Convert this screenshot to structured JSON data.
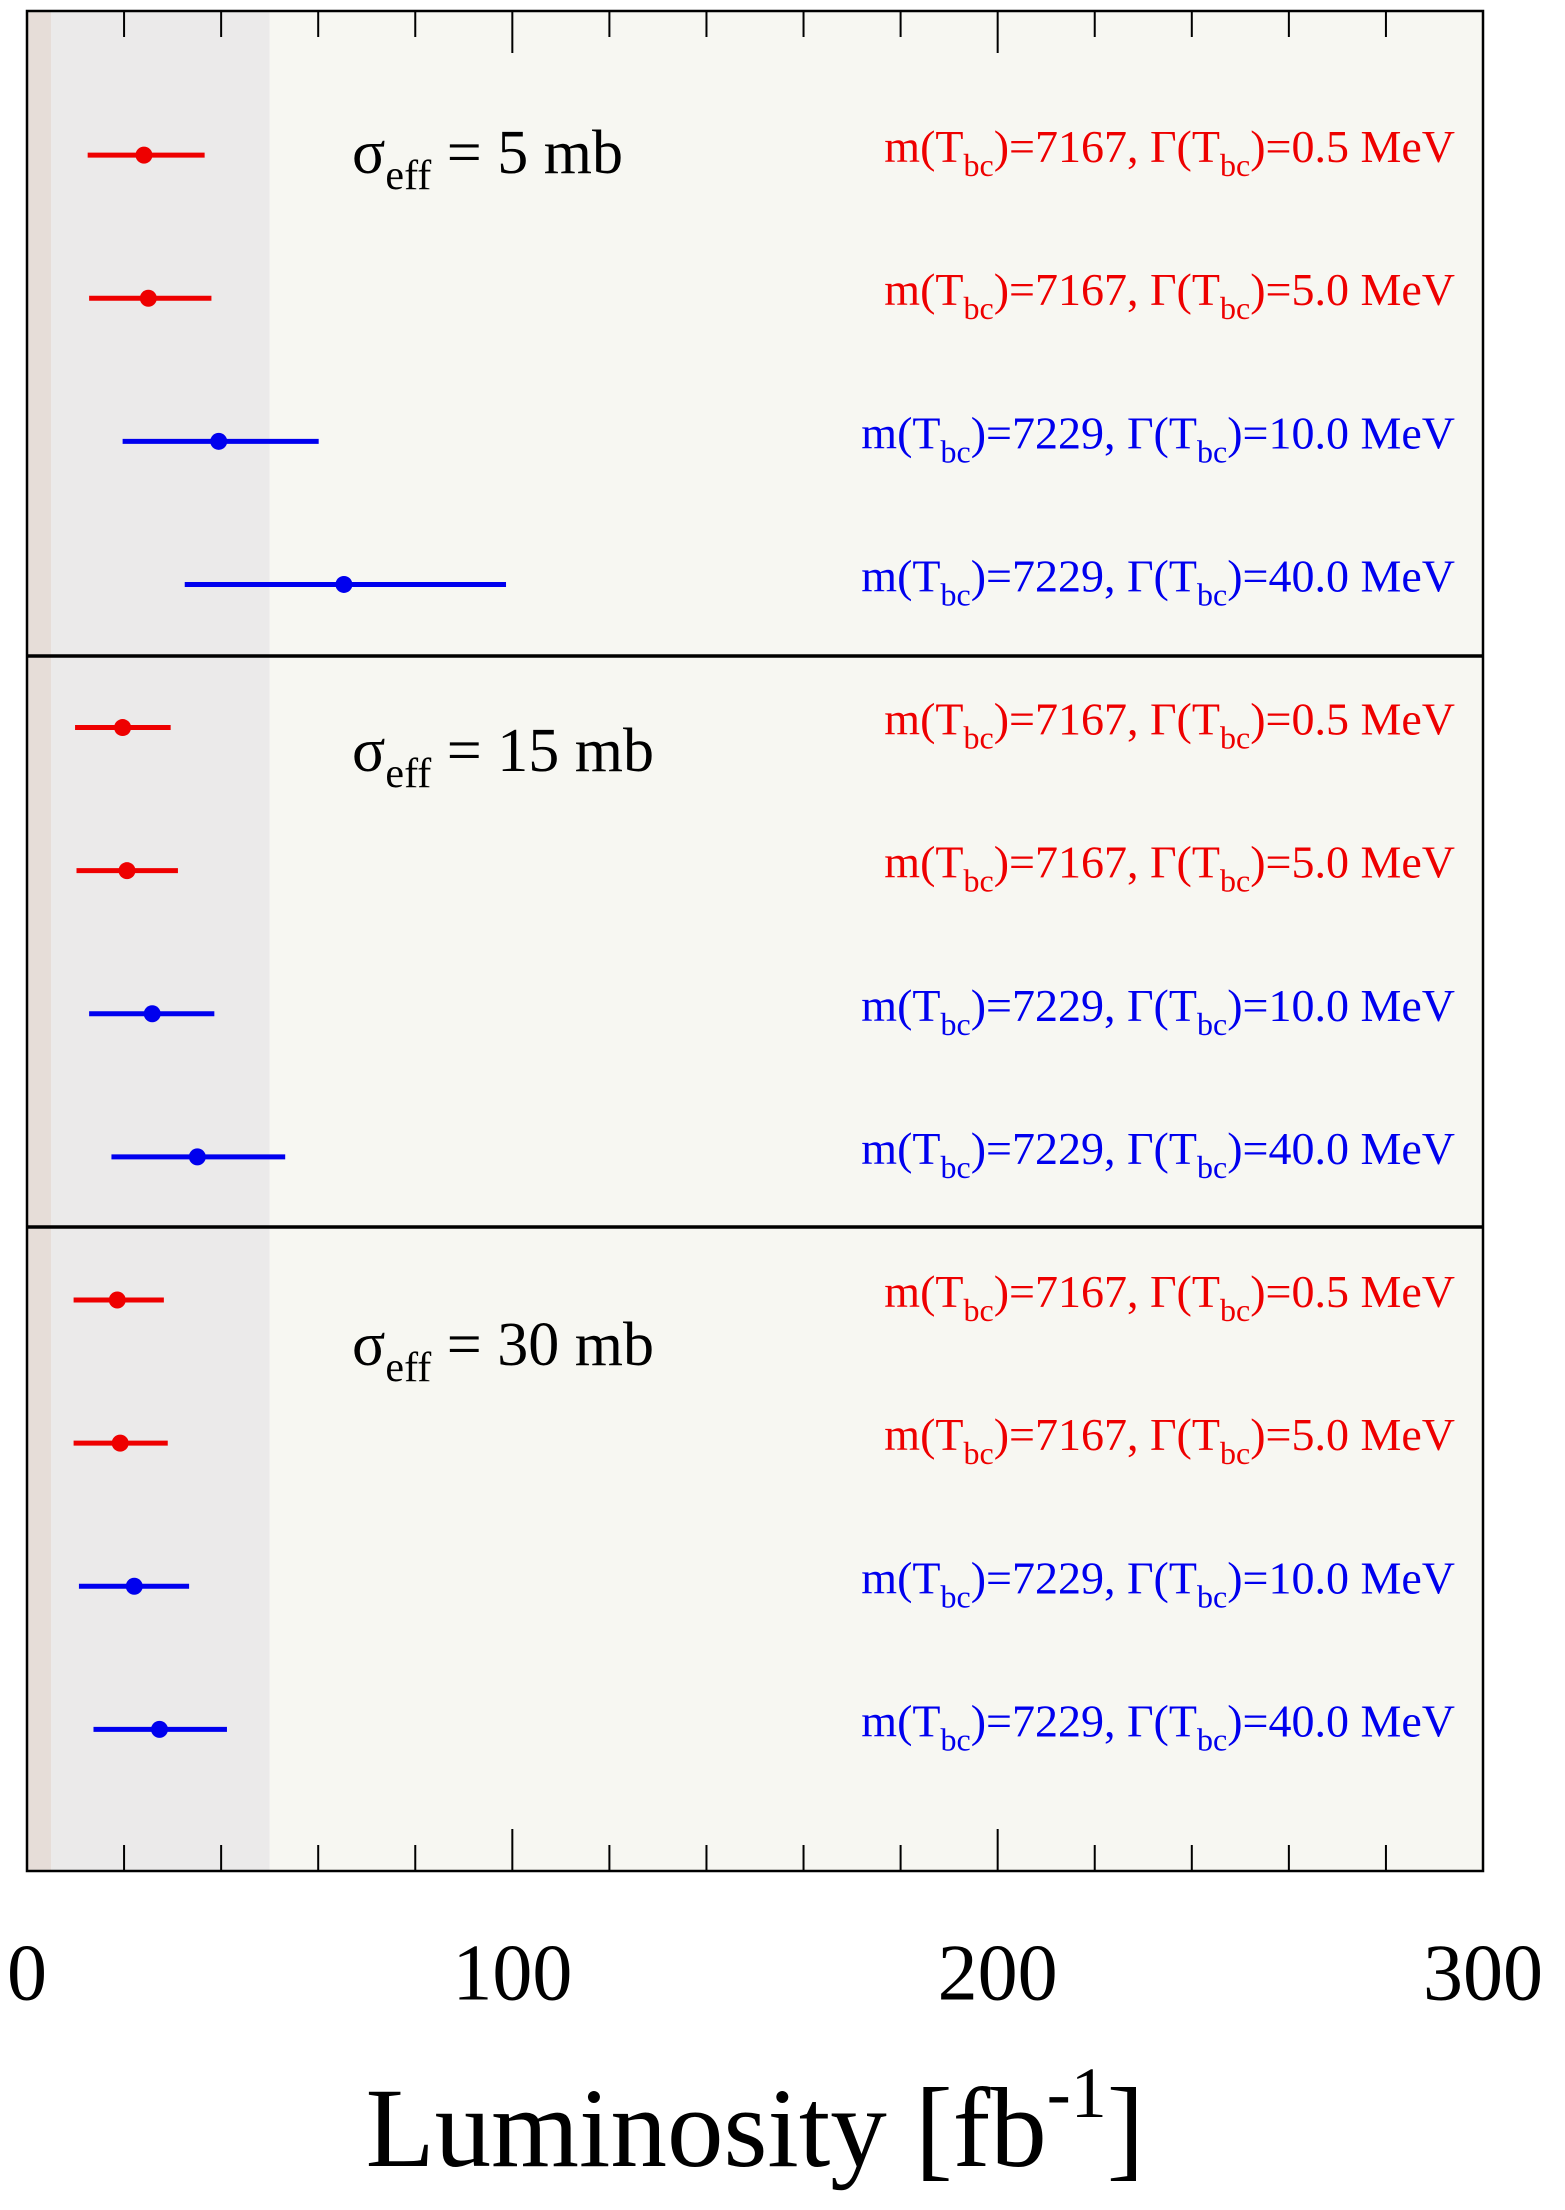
{
  "chart_data": {
    "type": "errorbar",
    "xlabel": [
      "Luminosity [fb",
      "-1",
      "]"
    ],
    "xlim": [
      0,
      300
    ],
    "xticks": [
      0,
      100,
      200,
      300
    ],
    "xminorticks": [
      20,
      40,
      60,
      80,
      120,
      140,
      160,
      180,
      220,
      240,
      260,
      280
    ],
    "bands": [
      {
        "from": 0,
        "to": 5,
        "color": "#e6ddd8"
      },
      {
        "from": 5,
        "to": 50,
        "color": "#ebeaea"
      },
      {
        "from": 50,
        "to": 300,
        "color": "#f7f7f2"
      }
    ],
    "panels": [
      {
        "title": [
          "σ",
          "eff",
          " = 5 mb"
        ],
        "rows": [
          {
            "label": [
              "m(T",
              "bc",
              ")=7167, Γ(T",
              "bc",
              ")=0.5 MeV"
            ],
            "color": "#ee0000",
            "value": 24.1,
            "lower": 12.5,
            "upper": 36.6
          },
          {
            "label": [
              "m(T",
              "bc",
              ")=7167, Γ(T",
              "bc",
              ")=5.0 MeV"
            ],
            "color": "#ee0000",
            "value": 25,
            "lower": 12.8,
            "upper": 38
          },
          {
            "label": [
              "m(T",
              "bc",
              ")=7229, Γ(T",
              "bc",
              ")=10.0 MeV"
            ],
            "color": "#0000ee",
            "value": 39.5,
            "lower": 19.7,
            "upper": 60.1
          },
          {
            "label": [
              "m(T",
              "bc",
              ")=7229, Γ(T",
              "bc",
              ")=40.0 MeV"
            ],
            "color": "#0000ee",
            "value": 65.3,
            "lower": 32.5,
            "upper": 98.7
          }
        ]
      },
      {
        "title": [
          "σ",
          "eff",
          " = 15 mb"
        ],
        "rows": [
          {
            "label": [
              "m(T",
              "bc",
              ")=7167, Γ(T",
              "bc",
              ")=0.5 MeV"
            ],
            "color": "#ee0000",
            "value": 19.7,
            "lower": 9.9,
            "upper": 29.6
          },
          {
            "label": [
              "m(T",
              "bc",
              ")=7167, Γ(T",
              "bc",
              ")=5.0 MeV"
            ],
            "color": "#ee0000",
            "value": 20.6,
            "lower": 10.2,
            "upper": 31.1
          },
          {
            "label": [
              "m(T",
              "bc",
              ")=7229, Γ(T",
              "bc",
              ")=10.0 MeV"
            ],
            "color": "#0000ee",
            "value": 25.8,
            "lower": 12.8,
            "upper": 38.6
          },
          {
            "label": [
              "m(T",
              "bc",
              ")=7229, Γ(T",
              "bc",
              ")=40.0 MeV"
            ],
            "color": "#0000ee",
            "value": 35.1,
            "lower": 17.4,
            "upper": 53.2
          }
        ]
      },
      {
        "title": [
          "σ",
          "eff",
          " = 30 mb"
        ],
        "rows": [
          {
            "label": [
              "m(T",
              "bc",
              ")=7167, Γ(T",
              "bc",
              ")=0.5 MeV"
            ],
            "color": "#ee0000",
            "value": 18.6,
            "lower": 9.6,
            "upper": 28.2
          },
          {
            "label": [
              "m(T",
              "bc",
              ")=7167, Γ(T",
              "bc",
              ")=5.0 MeV"
            ],
            "color": "#ee0000",
            "value": 19.2,
            "lower": 9.6,
            "upper": 29.0
          },
          {
            "label": [
              "m(T",
              "bc",
              ")=7229, Γ(T",
              "bc",
              ")=10.0 MeV"
            ],
            "color": "#0000ee",
            "value": 22.1,
            "lower": 10.7,
            "upper": 33.4
          },
          {
            "label": [
              "m(T",
              "bc",
              ")=7229, Γ(T",
              "bc",
              ")=40.0 MeV"
            ],
            "color": "#0000ee",
            "value": 27.3,
            "lower": 13.7,
            "upper": 41.2
          }
        ]
      }
    ]
  }
}
